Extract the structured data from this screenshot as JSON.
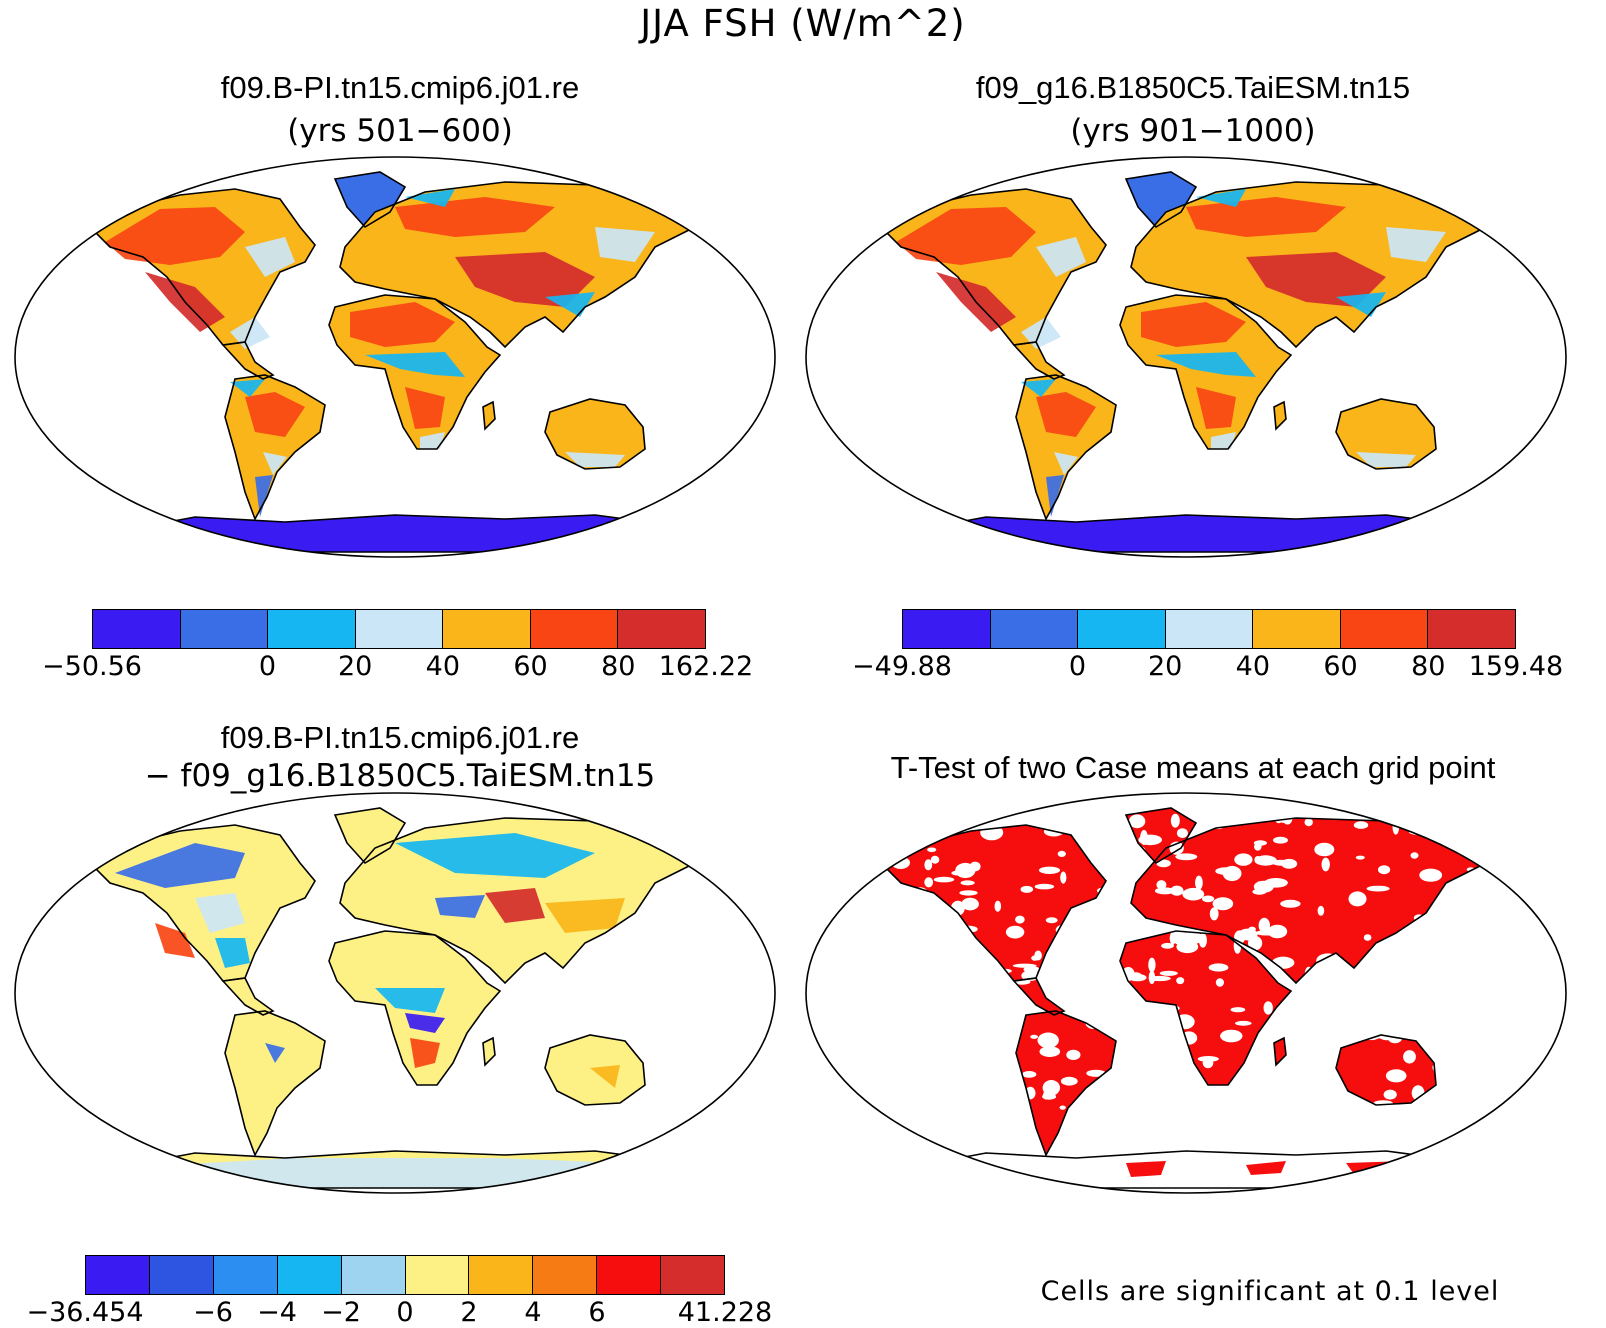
{
  "title": "JJA FSH (W/m^2)",
  "panels": [
    {
      "id": "case1",
      "title": "f09.B-PI.tn15.cmip6.j01.re",
      "subtitle": "(yrs 501−600)"
    },
    {
      "id": "case2",
      "title": "f09_g16.B1850C5.TaiESM.tn15",
      "subtitle": "(yrs 901−1000)"
    },
    {
      "id": "diff",
      "title": "f09.B-PI.tn15.cmip6.j01.re",
      "subtitle": "− f09_g16.B1850C5.TaiESM.tn15"
    },
    {
      "id": "ttest",
      "title": "T-Test of two Case means at each grid point",
      "subtitle": ""
    }
  ],
  "colorbars": [
    {
      "id": "cb1",
      "colors": [
        "#3a1cf2",
        "#3a6ee6",
        "#15b6f2",
        "#cbe6f6",
        "#f9b51a",
        "#f84513",
        "#d42d2b"
      ],
      "labels": [
        "−50.56",
        "",
        "0",
        "20",
        "40",
        "60",
        "80",
        "162.22"
      ]
    },
    {
      "id": "cb2",
      "colors": [
        "#3a1cf2",
        "#3a6ee6",
        "#15b6f2",
        "#cbe6f6",
        "#f9b51a",
        "#f84513",
        "#d42d2b"
      ],
      "labels": [
        "−49.88",
        "",
        "0",
        "20",
        "40",
        "60",
        "80",
        "159.48"
      ]
    },
    {
      "id": "cb3",
      "colors": [
        "#3a1cf2",
        "#2e55e2",
        "#2b8ef0",
        "#15b6f2",
        "#9fd4f1",
        "#fdf186",
        "#f9b51a",
        "#f77b14",
        "#f60e0e",
        "#d42d2b"
      ],
      "labels": [
        "−36.454",
        "",
        "−6",
        "−4",
        "−2",
        "0",
        "2",
        "4",
        "6",
        "",
        "41.228"
      ]
    }
  ],
  "footnote": "Cells are significant at 0.1 level",
  "fills": {
    "land_warm": "#f9b51a",
    "hot": "#f84513",
    "hotter": "#d42d2b",
    "pale": "#cbe6f6",
    "cyan": "#15b6f2",
    "blue": "#3a6ee6",
    "deep": "#3a1cf2",
    "yellow": "#fdf186",
    "sig": "#f60e0e"
  }
}
